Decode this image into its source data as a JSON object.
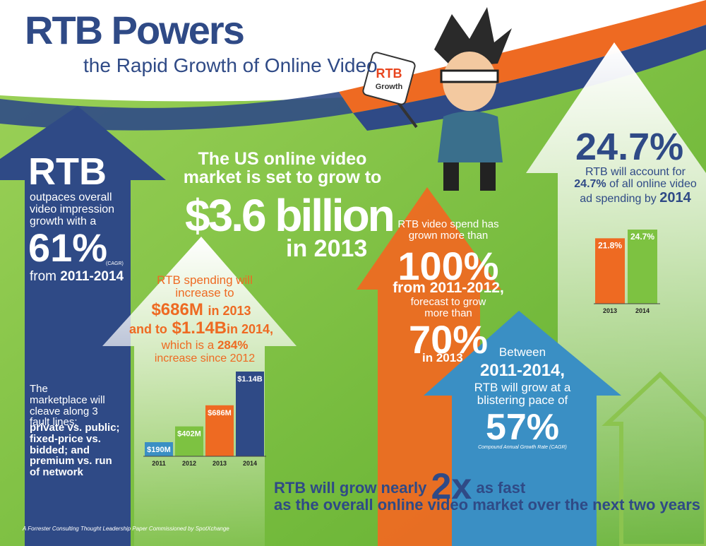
{
  "header": {
    "title": "RTB Powers",
    "subtitle": "the Rapid Growth of Online Video",
    "badge_top": "RTB",
    "badge_bottom": "Growth"
  },
  "impressions": {
    "lead": "RTB",
    "text": "outpaces overall video impression growth with a",
    "figure": "61%",
    "note": "(CAGR)",
    "from": "from",
    "period": "2011-2014"
  },
  "market": {
    "text": "The US online video market is set to grow to",
    "figure": "$3.6 billion",
    "year": "in 2013"
  },
  "spending": {
    "lead": "RTB spending will increase to",
    "figure_1": "$686M",
    "year_1": "in 2013",
    "and": "and to",
    "figure_2": "$1.14B",
    "year_2": "in 2014,",
    "which": "which is a",
    "figure_3": "284%",
    "tail": "increase since 2012",
    "chart": {
      "categories": [
        "2011",
        "2012",
        "2013",
        "2014"
      ],
      "values": [
        190,
        402,
        686,
        1140
      ],
      "value_labels": [
        "$190M",
        "$402M",
        "$686M",
        "$1.14B"
      ],
      "colors": [
        "#3a8fc4",
        "#7dc241",
        "#ee6a22",
        "#2f4a86"
      ]
    }
  },
  "marketplace": {
    "text": "The marketplace will cleave along 3 fault lines:",
    "points": "private vs. public; fixed-price vs. bidded; and premium vs. run of network"
  },
  "video_spend": {
    "lead": "RTB video spend has grown more than",
    "figure_1": "100%",
    "period": "from 2011-2012,",
    "forecast": "forecast to grow more than",
    "figure_2": "70%",
    "year": "in 2013"
  },
  "share": {
    "figure": "24.7%",
    "lead": "RTB will account for",
    "figure_2": "24.7%",
    "text": "of all online video ad spending by",
    "year": "2014",
    "chart": {
      "categories": [
        "2013",
        "2014"
      ],
      "values": [
        21.8,
        24.7
      ],
      "value_labels": [
        "21.8%",
        "24.7%"
      ],
      "colors": [
        "#ee6a22",
        "#7dc241"
      ]
    }
  },
  "pace": {
    "lead": "Between",
    "period": "2011-2014,",
    "text": "RTB will grow at a blistering pace of",
    "figure": "57%",
    "note": "Compound Annual Growth Rate (CAGR)"
  },
  "bottom": {
    "lead": "RTB will grow nearly",
    "figure": "2x",
    "tail": "as fast",
    "line_2": "as the overall online video market over the next two years"
  },
  "footer": "A Forrester Consulting Thought Leadership Paper Commissioned by SpotXchange"
}
